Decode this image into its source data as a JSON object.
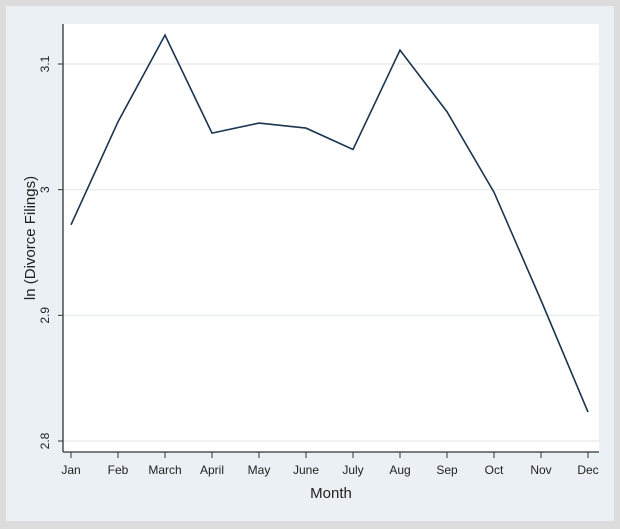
{
  "chart_data": {
    "type": "line",
    "title": "",
    "xlabel": "Month",
    "ylabel": "ln (Divorce Filings)",
    "categories": [
      "Jan",
      "Feb",
      "March",
      "April",
      "May",
      "June",
      "July",
      "Aug",
      "Sep",
      "Oct",
      "Nov",
      "Dec"
    ],
    "values": [
      2.972,
      3.054,
      3.123,
      3.045,
      3.053,
      3.049,
      3.032,
      3.111,
      3.062,
      2.998,
      2.912,
      2.823
    ],
    "yticks": [
      "2.8",
      "2.9",
      "3",
      "3.1"
    ],
    "ylim": [
      2.797,
      3.133
    ],
    "grid": true,
    "legend": "none",
    "colors": {
      "line": "#1a3550",
      "background": "#eaf0f3",
      "plot": "#ffffff",
      "grid": "#e4ebee"
    }
  }
}
